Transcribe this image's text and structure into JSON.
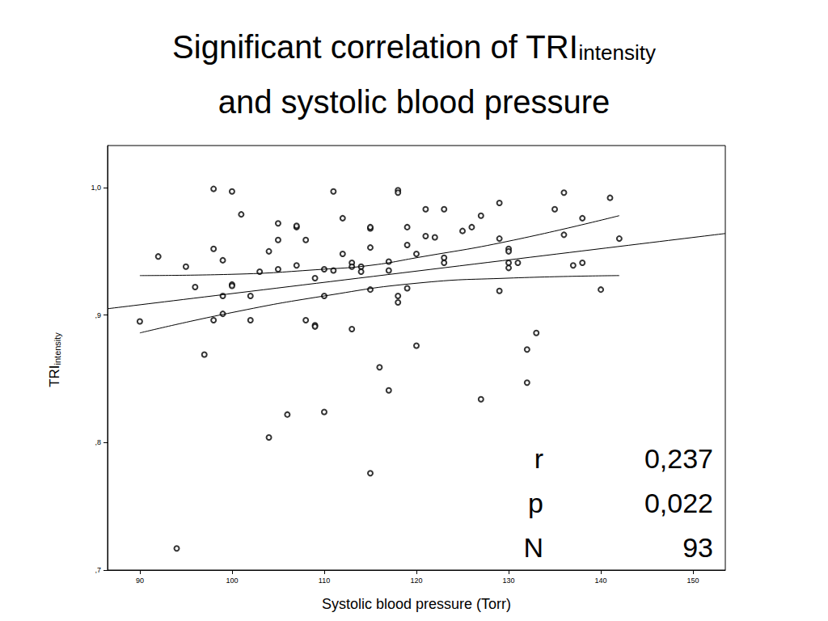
{
  "chart_data": {
    "type": "scatter",
    "title": {
      "text": "Significant correlation of TRI",
      "subscript": "intensity",
      "line2": "and systolic blood pressure"
    },
    "x_label": "Systolic blood pressure (Torr)",
    "y_label": {
      "text": "TRI",
      "subscript": "intensity"
    },
    "annotations": [
      {
        "label": "r",
        "value": "0,237"
      },
      {
        "label": "p",
        "value": "0,022"
      },
      {
        "label": "N",
        "value": "93"
      }
    ],
    "xlim": [
      86.5,
      153.5
    ],
    "xticks": [
      90,
      100,
      110,
      120,
      130,
      140,
      150
    ],
    "ylim": [
      0.7,
      1.033
    ],
    "yticks": [
      {
        "value": 0.7,
        "label": ",7"
      },
      {
        "value": 0.8,
        "label": ",8"
      },
      {
        "value": 0.9,
        "label": ",9"
      },
      {
        "value": 1.0,
        "label": "1,0"
      }
    ],
    "grid": false,
    "series": [
      {
        "type": "scatter",
        "color": "#000000",
        "marker": "circle",
        "x": [
          90,
          92,
          94,
          95,
          96,
          97,
          98,
          98,
          98,
          99,
          99,
          99,
          100,
          100,
          100,
          101,
          102,
          102,
          103,
          104,
          104,
          105,
          105,
          105,
          106,
          107,
          107,
          107,
          108,
          108,
          109,
          109,
          109,
          110,
          110,
          110,
          111,
          111,
          112,
          112,
          113,
          113,
          113,
          114,
          114,
          115,
          115,
          115,
          115,
          115,
          116,
          117,
          117,
          117,
          118,
          118,
          118,
          118,
          119,
          119,
          119,
          120,
          120,
          121,
          121,
          122,
          123,
          123,
          123,
          125,
          126,
          127,
          127,
          129,
          129,
          129,
          130,
          130,
          130,
          130,
          131,
          132,
          132,
          133,
          135,
          136,
          136,
          137,
          138,
          138,
          140,
          141,
          142
        ],
        "values": [
          0.895,
          0.946,
          0.717,
          0.938,
          0.922,
          0.869,
          0.999,
          0.952,
          0.896,
          0.943,
          0.915,
          0.901,
          0.997,
          0.924,
          0.923,
          0.979,
          0.915,
          0.896,
          0.934,
          0.95,
          0.804,
          0.972,
          0.959,
          0.936,
          0.822,
          0.969,
          0.97,
          0.939,
          0.959,
          0.896,
          0.929,
          0.892,
          0.891,
          0.936,
          0.915,
          0.824,
          0.997,
          0.935,
          0.976,
          0.948,
          0.941,
          0.938,
          0.889,
          0.938,
          0.934,
          0.968,
          0.969,
          0.953,
          0.92,
          0.776,
          0.859,
          0.841,
          0.942,
          0.935,
          0.998,
          0.996,
          0.915,
          0.91,
          0.969,
          0.955,
          0.921,
          0.948,
          0.876,
          0.983,
          0.962,
          0.961,
          0.983,
          0.945,
          0.941,
          0.966,
          0.969,
          0.978,
          0.834,
          0.988,
          0.96,
          0.919,
          0.952,
          0.95,
          0.941,
          0.937,
          0.941,
          0.873,
          0.847,
          0.886,
          0.983,
          0.996,
          0.963,
          0.939,
          0.976,
          0.941,
          0.92,
          0.992,
          0.96
        ]
      },
      {
        "type": "line",
        "color": "#000000",
        "line_style": "solid",
        "x": [
          86.5,
          153.5
        ],
        "values": [
          0.905,
          0.964
        ]
      },
      {
        "type": "line",
        "color": "#000000",
        "line_style": "solid",
        "x": [
          90,
          100,
          110,
          115,
          120,
          130,
          142
        ],
        "values": [
          0.931,
          0.932,
          0.936,
          0.939,
          0.945,
          0.958,
          0.978
        ]
      },
      {
        "type": "line",
        "color": "#000000",
        "line_style": "solid",
        "x": [
          90,
          100,
          110,
          120,
          130,
          142
        ],
        "values": [
          0.886,
          0.902,
          0.915,
          0.925,
          0.929,
          0.931
        ]
      }
    ]
  }
}
